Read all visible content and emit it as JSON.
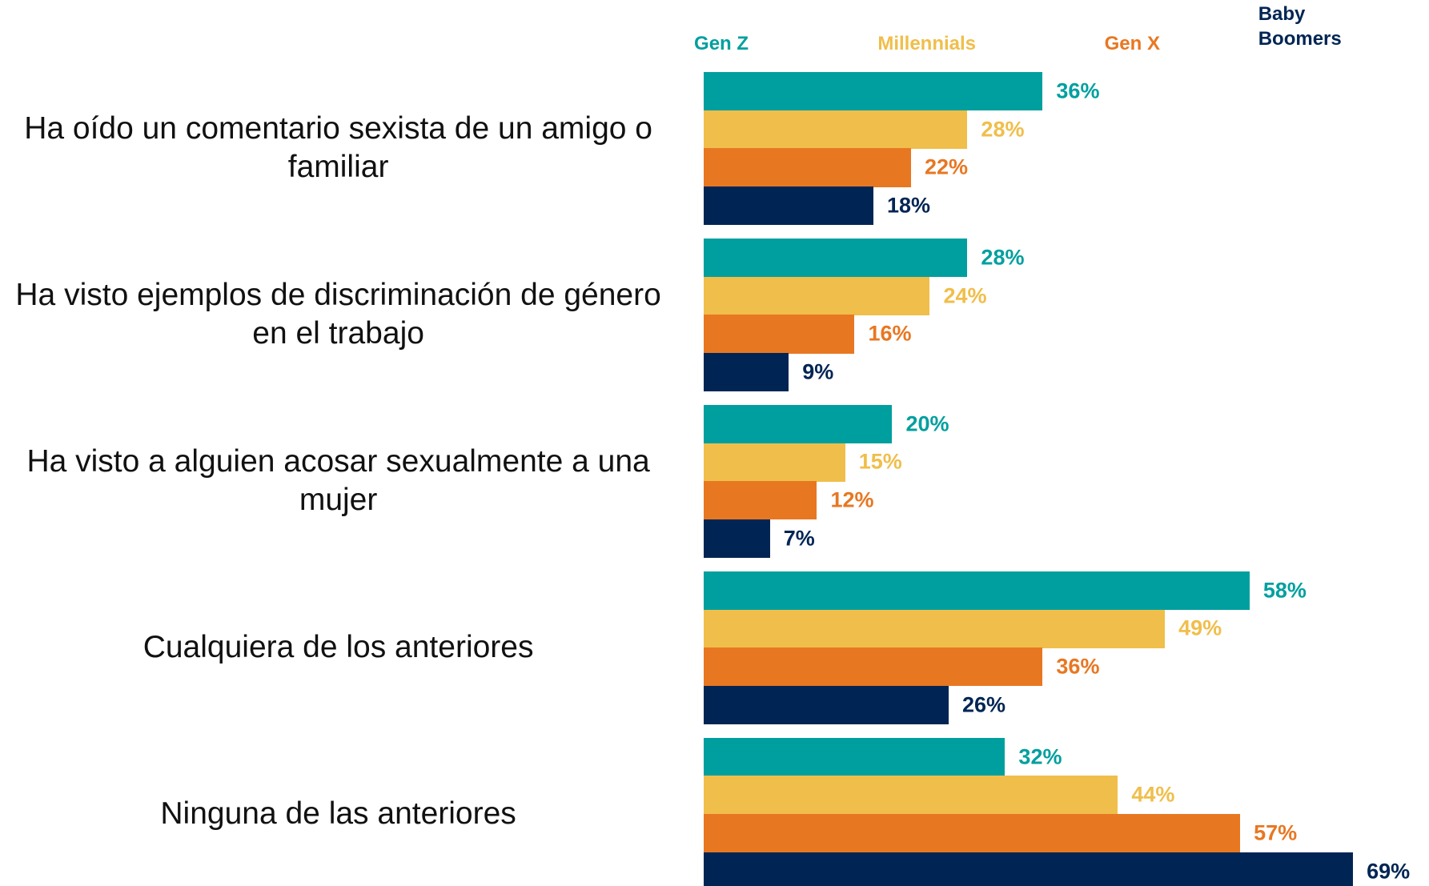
{
  "chart_data": {
    "type": "bar",
    "orientation": "horizontal",
    "categories": [
      "Ha oído un comentario sexista de un amigo o familiar",
      "Ha visto ejemplos de discriminación de género en el trabajo",
      "Ha visto a alguien acosar sexualmente a una mujer",
      "Cualquiera de los anteriores",
      "Ninguna de las anteriores"
    ],
    "series": [
      {
        "name": "Gen Z",
        "color": "#009f9f",
        "values": [
          36,
          28,
          20,
          58,
          32
        ],
        "value_labels": [
          "36%",
          "28%",
          "20%",
          "58%",
          "32%"
        ]
      },
      {
        "name": "Millennials",
        "color": "#f0be4a",
        "values": [
          28,
          24,
          15,
          49,
          44
        ],
        "value_labels": [
          "28%",
          "24%",
          "15%",
          "49%",
          "44%"
        ]
      },
      {
        "name": "Gen X",
        "color": "#e87722",
        "values": [
          22,
          16,
          12,
          36,
          57
        ],
        "value_labels": [
          "22%",
          "16%",
          "12%",
          "36%",
          "57%"
        ]
      },
      {
        "name": "Baby Boomers",
        "color": "#002554",
        "values": [
          18,
          9,
          7,
          26,
          69
        ],
        "value_labels": [
          "18%",
          "9%",
          "7%",
          "26%",
          "69%"
        ]
      }
    ]
  }
}
